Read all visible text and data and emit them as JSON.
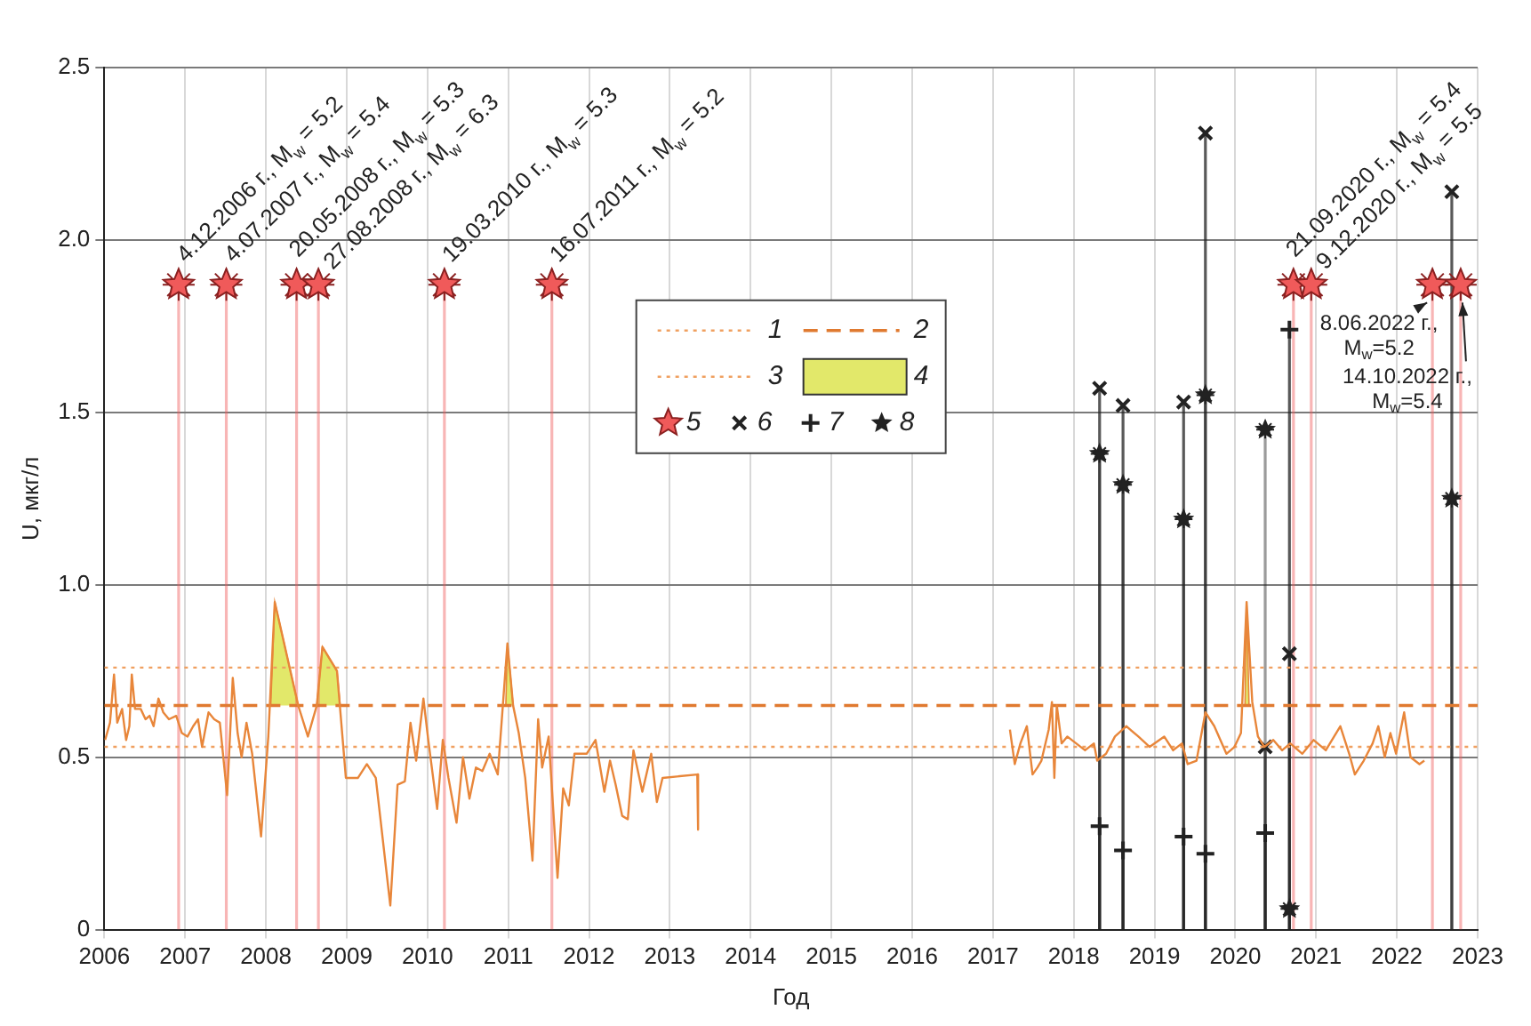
{
  "chart_data": {
    "type": "line",
    "xlabel": "Год",
    "ylabel": "U, мкг/л",
    "xlim": [
      2006,
      2023
    ],
    "xticks": [
      2006,
      2007,
      2008,
      2009,
      2010,
      2011,
      2012,
      2013,
      2014,
      2015,
      2016,
      2017,
      2018,
      2019,
      2020,
      2021,
      2022,
      2023
    ],
    "ylim": [
      0,
      2.5
    ],
    "yticks": [
      0,
      0.5,
      {
        "value": 1,
        "label": "1.0"
      },
      {
        "value": 1.5,
        "label": "1.5"
      },
      {
        "value": 2,
        "label": "2.0"
      },
      {
        "value": 2.5,
        "label": "2.5"
      }
    ],
    "grid": true,
    "legend": "top",
    "series": [
      {
        "color": "#e8863a",
        "x": [
          2006.01,
          2006.07,
          2006.12,
          2006.16,
          2006.22,
          2006.27,
          2006.31,
          2006.34,
          2006.38,
          2006.45,
          2006.51,
          2006.56,
          2006.61,
          2006.67,
          2006.73,
          2006.8,
          2006.89,
          2006.96,
          2007.03,
          2007.1,
          2007.16,
          2007.21,
          2007.29,
          2007.36,
          2007.43,
          2007.52,
          2007.59,
          2007.65,
          2007.7,
          2007.76,
          2007.83,
          2007.94,
          2008.03,
          2008.11,
          2008.4,
          2008.52,
          2008.63,
          2008.7,
          2008.88,
          2008.99,
          2009.14,
          2009.25,
          2009.36,
          2009.54,
          2009.63,
          2009.72,
          2009.79,
          2009.86,
          2009.95,
          2010.01,
          2010.12,
          2010.19,
          2010.26,
          2010.36,
          2010.44,
          2010.52,
          2010.6,
          2010.68,
          2010.77,
          2010.87,
          2010.99,
          2011.06,
          2011.13,
          2011.21,
          2011.3,
          2011.37,
          2011.42,
          2011.5,
          2011.61,
          2011.68,
          2011.75,
          2011.82,
          2011.97,
          2012.08,
          2012.19,
          2012.26,
          2012.33,
          2012.41,
          2012.48,
          2012.55,
          2012.66,
          2012.77,
          2012.84,
          2012.91,
          2013.34,
          2013.35,
          2015.3,
          2017.21,
          2017.27,
          2017.34,
          2017.42,
          2017.49,
          2017.55,
          2017.6,
          2017.69,
          2017.73,
          2017.76,
          2017.79,
          2017.85,
          2017.92,
          2018.03,
          2018.14,
          2018.25,
          2018.29,
          2018.4,
          2018.51,
          2018.65,
          2018.8,
          2018.94,
          2019.12,
          2019.23,
          2019.34,
          2019.41,
          2019.52,
          2019.63,
          2019.74,
          2019.89,
          2019.99,
          2020.07,
          2020.14,
          2020.21,
          2020.28,
          2020.36,
          2020.47,
          2020.58,
          2020.68,
          2020.83,
          2020.97,
          2021.12,
          2021.3,
          2021.41,
          2021.48,
          2021.59,
          2021.7,
          2021.77,
          2021.85,
          2021.92,
          2021.99,
          2022.09,
          2022.17,
          2022.28,
          2022.34
        ],
        "values": [
          0.55,
          0.6,
          0.74,
          0.6,
          0.64,
          0.55,
          0.59,
          0.74,
          0.64,
          0.64,
          0.61,
          0.62,
          0.59,
          0.67,
          0.63,
          0.61,
          0.62,
          0.57,
          0.56,
          0.59,
          0.61,
          0.53,
          0.63,
          0.61,
          0.6,
          0.39,
          0.73,
          0.57,
          0.5,
          0.6,
          0.51,
          0.27,
          0.56,
          0.95,
          0.65,
          0.56,
          0.65,
          0.82,
          0.75,
          0.44,
          0.44,
          0.48,
          0.44,
          0.07,
          0.42,
          0.43,
          0.6,
          0.49,
          0.67,
          0.55,
          0.35,
          0.55,
          0.44,
          0.31,
          0.5,
          0.38,
          0.47,
          0.46,
          0.51,
          0.45,
          0.83,
          0.65,
          0.57,
          0.44,
          0.2,
          0.61,
          0.47,
          0.56,
          0.15,
          0.41,
          0.36,
          0.51,
          0.51,
          0.55,
          0.4,
          0.49,
          0.42,
          0.33,
          0.32,
          0.52,
          0.4,
          0.51,
          0.37,
          0.44,
          0.45,
          0.29,
          null,
          0.58,
          0.48,
          0.54,
          0.59,
          0.45,
          0.47,
          0.49,
          0.58,
          0.66,
          0.44,
          0.65,
          0.54,
          0.56,
          0.54,
          0.52,
          0.54,
          0.49,
          0.51,
          0.56,
          0.59,
          0.56,
          0.53,
          0.56,
          0.52,
          0.54,
          0.48,
          0.49,
          0.63,
          0.59,
          0.51,
          0.53,
          0.57,
          0.95,
          0.66,
          0.56,
          0.53,
          0.55,
          0.52,
          0.54,
          0.51,
          0.55,
          0.52,
          0.59,
          0.51,
          0.45,
          0.49,
          0.54,
          0.59,
          0.5,
          0.57,
          0.51,
          0.63,
          0.5,
          0.48,
          0.49
        ]
      },
      {
        "name": "1",
        "color": "#f0a060",
        "line_style": "dotted",
        "x": [
          2006,
          2023
        ],
        "values": [
          0.76,
          0.76
        ]
      },
      {
        "name": "2",
        "color": "#e07a30",
        "line_style": "dashed",
        "x": [
          2006,
          2023
        ],
        "values": [
          0.65,
          0.65
        ]
      },
      {
        "name": "3",
        "color": "#f0a060",
        "line_style": "dotted",
        "x": [
          2006,
          2023
        ],
        "values": [
          0.53,
          0.53
        ]
      },
      {
        "type": "area",
        "name": "4",
        "color": "#e2e86a",
        "x": [
          2008.06,
          2008.11,
          2008.4,
          2008.5,
          2008.63,
          2008.7,
          2008.88,
          2008.92,
          2010,
          2010.97,
          2010.99,
          2011.06,
          2015,
          2020.12,
          2020.14,
          2020.17
        ],
        "values": [
          0.65,
          0.95,
          0.65,
          null,
          0.65,
          0.82,
          0.75,
          0.65,
          null,
          0.65,
          0.83,
          0.65,
          null,
          0.65,
          0.95,
          0.65
        ]
      },
      {
        "type": "lollipop",
        "name": "5",
        "color": "#f05a5a",
        "marker": "star",
        "x": [
          2006.92,
          2007.51,
          2008.38,
          2008.65,
          2010.21,
          2011.54,
          2020.72,
          2020.94,
          2022.44,
          2022.79
        ],
        "values": [
          1.87,
          1.87,
          1.87,
          1.87,
          1.87,
          1.87,
          1.87,
          1.87,
          1.87,
          1.87
        ]
      },
      {
        "type": "lollipop",
        "name": "6",
        "color": "#222222",
        "marker": "cross",
        "x": [
          2018.32,
          2018.61,
          2019.36,
          2019.63,
          2020.37,
          2020.67,
          2022.68
        ],
        "values": [
          1.57,
          1.52,
          1.53,
          2.31,
          0.53,
          0.8,
          2.14
        ]
      },
      {
        "type": "lollipop",
        "name": "7",
        "color": "#222222",
        "marker": "plus",
        "x": [
          2018.32,
          2018.61,
          2019.36,
          2019.63,
          2020.37,
          2020.67
        ],
        "values": [
          0.3,
          0.23,
          0.27,
          0.22,
          0.28,
          1.74
        ]
      },
      {
        "type": "lollipop",
        "name": "8",
        "color": "#222222",
        "marker": "star",
        "x": [
          2018.32,
          2018.61,
          2019.36,
          2019.63,
          2020.37,
          2020.67,
          2022.68
        ],
        "values": [
          1.38,
          1.29,
          1.19,
          1.55,
          1.45,
          0.06,
          1.25
        ]
      }
    ],
    "annotations": [
      {
        "text": "4.12.2006 г., M$_{w}$ = 5.2",
        "x": 2006.92,
        "y": 1.87
      },
      {
        "text": "4.07.2007 г., M$_{w}$ = 5.4",
        "x": 2007.51,
        "y": 1.87
      },
      {
        "text": "20.05.2008 г., M$_{w}$ = 5.3",
        "x": 2008.38,
        "y": 1.87
      },
      {
        "text": "27.08.2008 г., M$_{w}$ = 6.3",
        "x": 2008.65,
        "y": 1.87
      },
      {
        "text": "19.03.2010 г., M$_{w}$ = 5.3",
        "x": 2010.21,
        "y": 1.87
      },
      {
        "text": "16.07.2011 г., M$_{w}$ = 5.2",
        "x": 2011.54,
        "y": 1.87
      },
      {
        "text": "21.09.2020 г., M$_{w}$ = 5.4",
        "x": 2020.72,
        "y": 1.87
      },
      {
        "text": "9.12.2020 г., M$_{w}$ = 5.5",
        "x": 2020.94,
        "y": 1.87
      },
      {
        "text": "8.06.2022 г.,\nM$_{w}$=5.2",
        "x": 2022.44,
        "y": 1.87
      },
      "14.10.2022 г.,\nM$_{w}$=5.4"
    ]
  }
}
